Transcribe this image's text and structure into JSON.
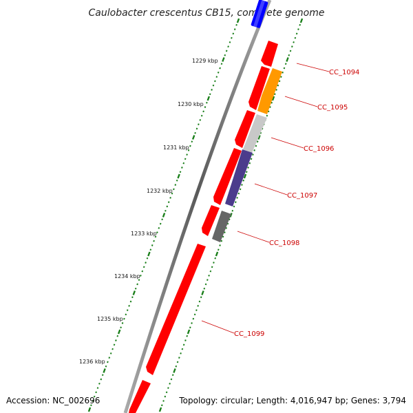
{
  "title": "Caulobacter crescentus CB15, complete genome",
  "footer": {
    "accession": "Accession: NC_002696",
    "topology": "Topology: circular; Length: 4,016,947 bp; Genes: 3,794"
  },
  "scale_labels": [
    "1229 kbp",
    "1230 kbp",
    "1231 kbp",
    "1232 kbp",
    "1233 kbp",
    "1234 kbp",
    "1235 kbp",
    "1236 kbp"
  ],
  "gene_labels": [
    "CC_1094",
    "CC_1095",
    "CC_1096",
    "CC_1097",
    "CC_1098",
    "CC_1099"
  ],
  "colors": {
    "forward_gene": "#ff0000",
    "tick": "#1a7f1a",
    "backbone": "#888888",
    "label_line": "#cc0000",
    "cc_1095": "#ff9900",
    "cc_1096": "#c8c8c8",
    "cc_1097": "#4b3c8c",
    "cc_1098": "#666666",
    "top_blue": "#0000ff"
  }
}
